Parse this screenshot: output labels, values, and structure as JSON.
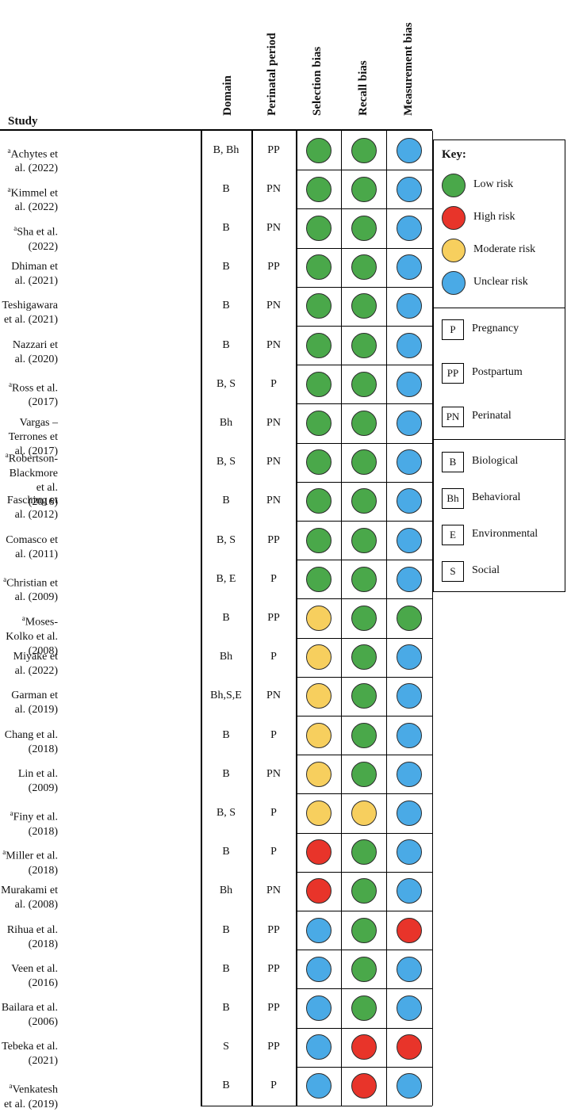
{
  "headers": {
    "study": "Study",
    "domain": "Domain",
    "period": "Perinatal period",
    "selection": "Selection bias",
    "recall": "Recall bias",
    "measurement": "Measurement bias"
  },
  "rows": [
    {
      "sup": "a",
      "name": "Achytes et al. (2022)",
      "domain": "B, Bh",
      "period": "PP",
      "sel": "low",
      "rec": "low",
      "mea": "unclear"
    },
    {
      "sup": "a",
      "name": "Kimmel et al. (2022)",
      "domain": "B",
      "period": "PN",
      "sel": "low",
      "rec": "low",
      "mea": "unclear"
    },
    {
      "sup": "a",
      "name": "Sha et al. (2022)",
      "domain": "B",
      "period": "PN",
      "sel": "low",
      "rec": "low",
      "mea": "unclear"
    },
    {
      "sup": "",
      "name": "Dhiman et al. (2021)",
      "domain": "B",
      "period": "PP",
      "sel": "low",
      "rec": "low",
      "mea": "unclear"
    },
    {
      "sup": "",
      "name": "Teshigawara et al. (2021)",
      "domain": "B",
      "period": "PN",
      "sel": "low",
      "rec": "low",
      "mea": "unclear"
    },
    {
      "sup": "",
      "name": "Nazzari et al. (2020)",
      "domain": "B",
      "period": "PN",
      "sel": "low",
      "rec": "low",
      "mea": "unclear"
    },
    {
      "sup": "a",
      "name": "Ross et al. (2017)",
      "domain": "B, S",
      "period": "P",
      "sel": "low",
      "rec": "low",
      "mea": "unclear"
    },
    {
      "sup": "",
      "name": "Vargas – Terrones et al. (2017)",
      "domain": "Bh",
      "period": "PN",
      "sel": "low",
      "rec": "low",
      "mea": "unclear"
    },
    {
      "sup": "a",
      "name": "Robertson-Blackmore et al.",
      "name2": "(2016)",
      "domain": "B, S",
      "period": "PN",
      "sel": "low",
      "rec": "low",
      "mea": "unclear"
    },
    {
      "sup": "",
      "name": "Fasching et al. (2012)",
      "domain": "B",
      "period": "PN",
      "sel": "low",
      "rec": "low",
      "mea": "unclear"
    },
    {
      "sup": "",
      "name": "Comasco et al. (2011)",
      "domain": "B, S",
      "period": "PP",
      "sel": "low",
      "rec": "low",
      "mea": "unclear"
    },
    {
      "sup": "a",
      "name": "Christian et al. (2009)",
      "domain": "B, E",
      "period": "P",
      "sel": "low",
      "rec": "low",
      "mea": "unclear"
    },
    {
      "sup": "a",
      "name": "Moses-Kolko et al. (2008)",
      "domain": "B",
      "period": "PP",
      "sel": "moderate",
      "rec": "low",
      "mea": "low"
    },
    {
      "sup": "",
      "name": "Miyake et al. (2022)",
      "domain": "Bh",
      "period": "P",
      "sel": "moderate",
      "rec": "low",
      "mea": "unclear"
    },
    {
      "sup": "",
      "name": "Garman et al. (2019)",
      "domain": "Bh,S,E",
      "period": "PN",
      "sel": "moderate",
      "rec": "low",
      "mea": "unclear"
    },
    {
      "sup": "",
      "name": "Chang et al. (2018)",
      "domain": "B",
      "period": "P",
      "sel": "moderate",
      "rec": "low",
      "mea": "unclear"
    },
    {
      "sup": "",
      "name": "Lin et al. (2009)",
      "domain": "B",
      "period": "PN",
      "sel": "moderate",
      "rec": "low",
      "mea": "unclear"
    },
    {
      "sup": "a",
      "name": "Finy et al. (2018)",
      "domain": "B, S",
      "period": "P",
      "sel": "moderate",
      "rec": "moderate",
      "mea": "unclear"
    },
    {
      "sup": "a",
      "name": "Miller et al. (2018)",
      "domain": "B",
      "period": "P",
      "sel": "high",
      "rec": "low",
      "mea": "unclear"
    },
    {
      "sup": "",
      "name": "Murakami et al. (2008)",
      "domain": "Bh",
      "period": "PN",
      "sel": "high",
      "rec": "low",
      "mea": "unclear"
    },
    {
      "sup": "",
      "name": "Rihua et al. (2018)",
      "domain": "B",
      "period": "PP",
      "sel": "unclear",
      "rec": "low",
      "mea": "high"
    },
    {
      "sup": "",
      "name": "Veen et al. (2016)",
      "domain": "B",
      "period": "PP",
      "sel": "unclear",
      "rec": "low",
      "mea": "unclear"
    },
    {
      "sup": "",
      "name": "Bailara et al. (2006)",
      "domain": "B",
      "period": "PP",
      "sel": "unclear",
      "rec": "low",
      "mea": "unclear"
    },
    {
      "sup": "",
      "name": "Tebeka et al. (2021)",
      "domain": "S",
      "period": "PP",
      "sel": "unclear",
      "rec": "high",
      "mea": "high"
    },
    {
      "sup": "a",
      "name": "Venkatesh et al. (2019)",
      "domain": "B",
      "period": "P",
      "sel": "unclear",
      "rec": "high",
      "mea": "unclear"
    }
  ],
  "colors": {
    "low": "#4aa84a",
    "high": "#e8342a",
    "moderate": "#f7cf5e",
    "unclear": "#4aaae6"
  },
  "key": {
    "title": "Key:",
    "risks": [
      {
        "id": "low",
        "label": "Low risk"
      },
      {
        "id": "high",
        "label": "High risk"
      },
      {
        "id": "moderate",
        "label": "Moderate risk"
      },
      {
        "id": "unclear",
        "label": "Unclear risk"
      }
    ],
    "periods": [
      {
        "abbr": "P",
        "label": "Pregnancy"
      },
      {
        "abbr": "PP",
        "label": "Postpartum"
      },
      {
        "abbr": "PN",
        "label": "Perinatal"
      }
    ],
    "domains": [
      {
        "abbr": "B",
        "label": "Biological"
      },
      {
        "abbr": "Bh",
        "label": "Behavioral"
      },
      {
        "abbr": "E",
        "label": "Environmental"
      },
      {
        "abbr": "S",
        "label": "Social"
      }
    ]
  }
}
